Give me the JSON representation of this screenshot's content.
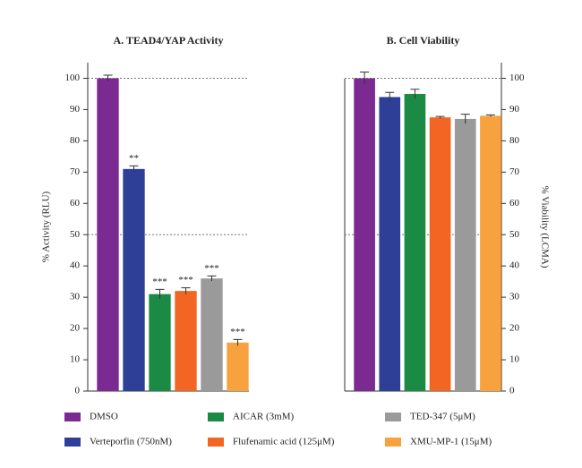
{
  "legend": {
    "items": [
      {
        "name": "DMSO",
        "color": "#7b2a92"
      },
      {
        "name": "Verteporfin (750nM)",
        "color": "#2e3f98"
      },
      {
        "name": "AICAR (3mM)",
        "color": "#1a8a44"
      },
      {
        "name": "Flufenamic acid (125μM)",
        "color": "#f26522"
      },
      {
        "name": "TED-347 (5μM)",
        "color": "#9a9a9a"
      },
      {
        "name": "XMU-MP-1 (15μM)",
        "color": "#f7a23f"
      }
    ]
  },
  "chart_data": [
    {
      "type": "bar",
      "title": "A. TEAD4/YAP Activity",
      "y_label": "% Activity (RLU)",
      "axis_side": "left",
      "values": [
        100,
        71,
        31,
        32,
        36,
        15.5
      ],
      "errors": [
        1,
        1,
        1.5,
        1,
        0.8,
        1
      ],
      "annotations": [
        null,
        "**",
        "***",
        "***",
        "***",
        "***"
      ],
      "ylim": [
        0,
        105
      ],
      "yticks": [
        0,
        10,
        20,
        30,
        40,
        50,
        60,
        70,
        80,
        90,
        100
      ],
      "reference_lines": [
        50,
        100
      ]
    },
    {
      "type": "bar",
      "title": "B. Cell Viability",
      "y_label": "% Viability (LCMA)",
      "axis_side": "right",
      "values": [
        100,
        94,
        95,
        87.5,
        87,
        88
      ],
      "errors": [
        2,
        1.5,
        1.5,
        0.3,
        1.5,
        0.3
      ],
      "ylim": [
        0,
        105
      ],
      "yticks": [
        0,
        10,
        20,
        30,
        40,
        50,
        60,
        70,
        80,
        90,
        100
      ],
      "reference_lines": [
        50,
        100
      ]
    }
  ]
}
